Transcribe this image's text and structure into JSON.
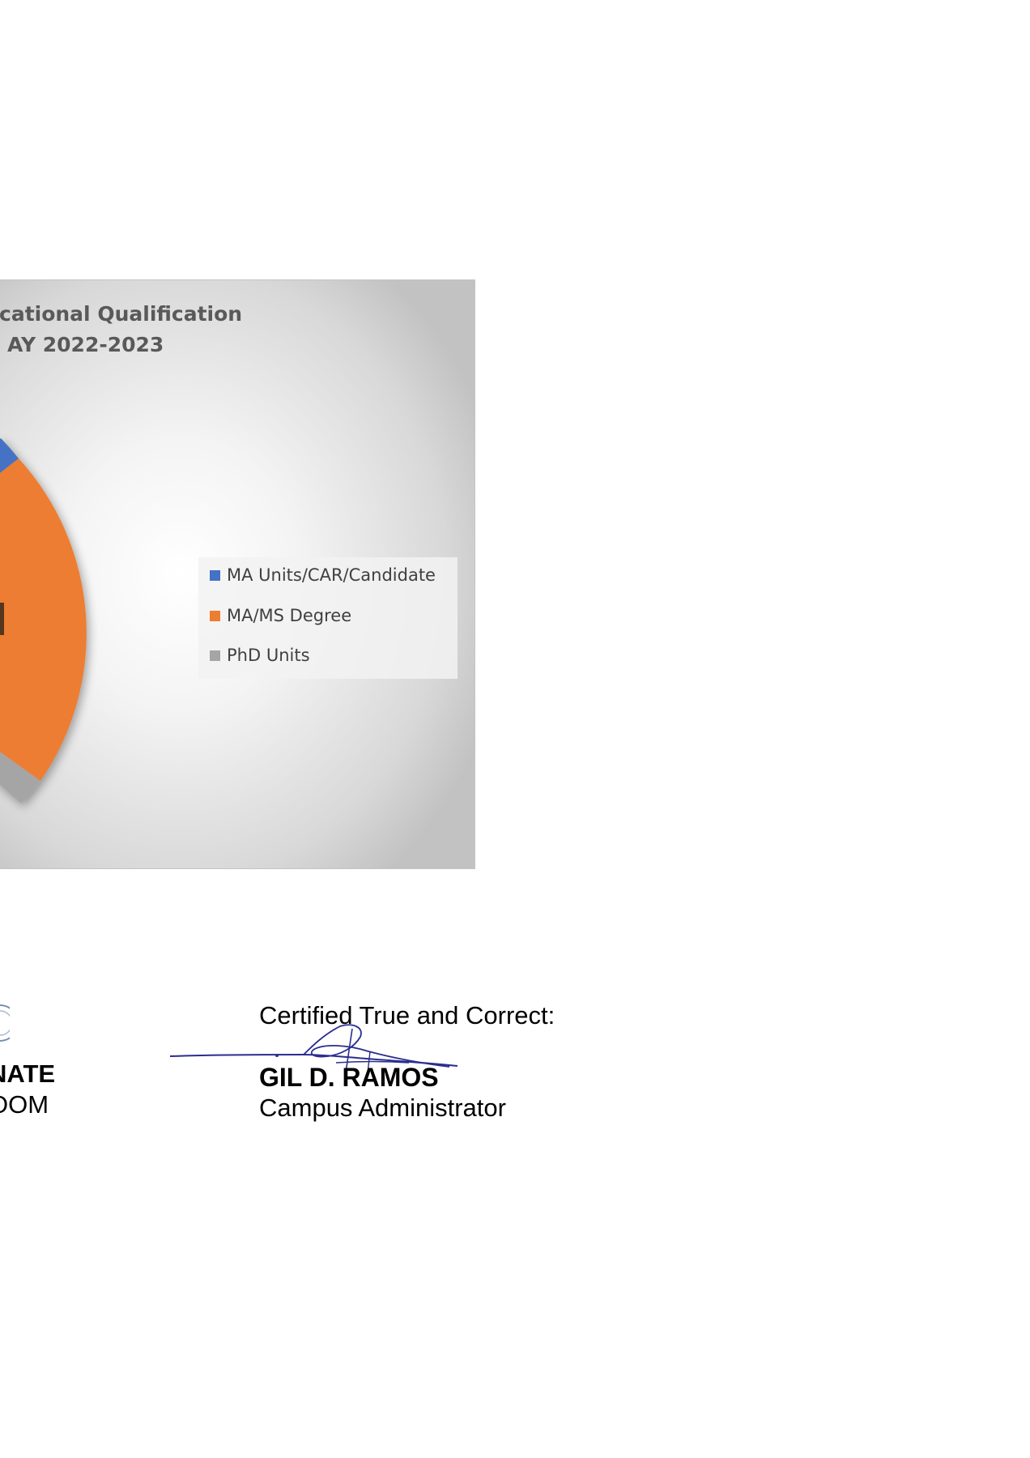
{
  "chart_data": {
    "type": "pie",
    "title_lines": [
      "cational Qualification",
      "AY 2022-2023"
    ],
    "legend": [
      {
        "label": "MA Units/CAR/Candidate",
        "color": "#4472C4"
      },
      {
        "label": "MA/MS Degree",
        "color": "#ED7D31"
      },
      {
        "label": "PhD Units",
        "color": "#A5A5A5"
      }
    ],
    "legend_placement": "right",
    "labels": [
      "MA Units/CAR/Candidate",
      "MA/MS Degree",
      "PhD Units"
    ]
  },
  "signatories": {
    "left": {
      "name": "NATE",
      "title": "OOM"
    },
    "right": {
      "caption": "Certified True and Correct:",
      "name": "GIL D. RAMOS",
      "title": "Campus Administrator"
    }
  }
}
